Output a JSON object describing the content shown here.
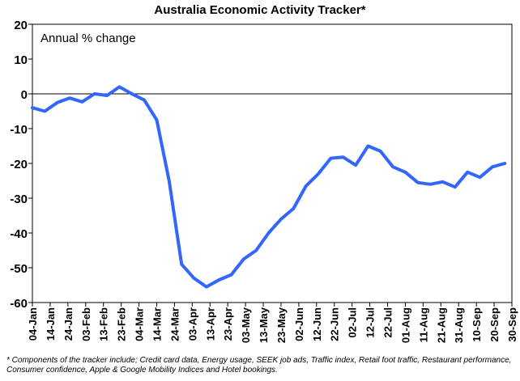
{
  "chart_data": {
    "type": "line",
    "title": "Australia Economic Activity Tracker*",
    "annotation": "Annual % change",
    "xlabel": "",
    "ylabel": "",
    "ylim": [
      -60,
      20
    ],
    "yticks": [
      20,
      10,
      0,
      -10,
      -20,
      -30,
      -40,
      -50,
      -60
    ],
    "xtick_labels": [
      "04-Jan",
      "14-Jan",
      "24-Jan",
      "03-Feb",
      "13-Feb",
      "23-Feb",
      "04-Mar",
      "14-Mar",
      "24-Mar",
      "03-Apr",
      "13-Apr",
      "23-Apr",
      "03-May",
      "13-May",
      "23-May",
      "02-Jun",
      "12-Jun",
      "22-Jun",
      "02-Jul",
      "12-Jul",
      "22-Jul",
      "01-Aug",
      "11-Aug",
      "21-Aug",
      "31-Aug",
      "10-Sep",
      "20-Sep",
      "30-Sep"
    ],
    "grid": false,
    "line_color": "#3366ff",
    "series": [
      {
        "x": [
          "04-Jan",
          "11-Jan",
          "18-Jan",
          "25-Jan",
          "01-Feb",
          "08-Feb",
          "15-Feb",
          "22-Feb",
          "29-Feb",
          "07-Mar",
          "14-Mar",
          "21-Mar",
          "28-Mar",
          "04-Apr",
          "11-Apr",
          "18-Apr",
          "25-Apr",
          "02-May",
          "09-May",
          "16-May",
          "23-May",
          "30-May",
          "06-Jun",
          "13-Jun",
          "20-Jun",
          "27-Jun",
          "04-Jul",
          "11-Jul",
          "18-Jul",
          "25-Jul",
          "01-Aug",
          "08-Aug",
          "15-Aug",
          "22-Aug",
          "29-Aug",
          "05-Sep",
          "12-Sep",
          "19-Sep",
          "26-Sep"
        ],
        "values": [
          -4,
          -5,
          -2.5,
          -1.2,
          -2.3,
          0,
          -0.5,
          2,
          0,
          -1.8,
          -7.5,
          -25,
          -49,
          -53,
          -55.5,
          -53.5,
          -52,
          -47.5,
          -45,
          -40,
          -36,
          -33,
          -26.5,
          -23,
          -18.5,
          -18.2,
          -20.5,
          -15,
          -16.5,
          -21,
          -22.5,
          -25.5,
          -26,
          -25.3,
          -26.8,
          -22.5,
          -24,
          -21,
          -20
        ]
      }
    ]
  },
  "footnote": "* Components of the tracker include; Credit card data, Energy usage, SEEK job ads, Traffic index, Retail foot traffic, Restaurant performance, Consumer confidence, Apple & Google Mobility Indices and Hotel bookings."
}
